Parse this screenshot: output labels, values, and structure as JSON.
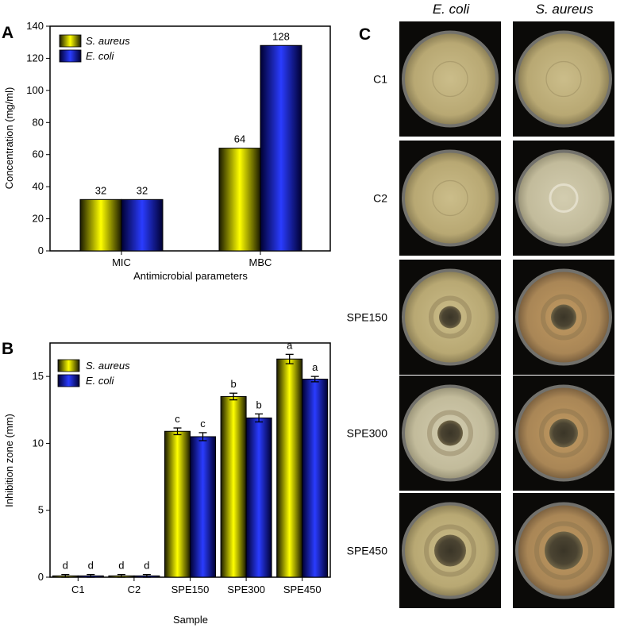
{
  "chart_data": [
    {
      "panel": "A",
      "type": "bar",
      "categories": [
        "MIC",
        "MBC"
      ],
      "series": [
        {
          "name": "S. aureus",
          "values": [
            32,
            64
          ]
        },
        {
          "name": "E. coli",
          "values": [
            32,
            128
          ]
        }
      ],
      "bar_labels": [
        [
          "32",
          "64"
        ],
        [
          "32",
          "128"
        ]
      ],
      "xlabel": "Antimicrobial parameters",
      "ylabel": "Concentration (mg/ml)",
      "ylim": [
        0,
        140
      ],
      "yticks": [
        0,
        20,
        40,
        60,
        80,
        100,
        120,
        140
      ],
      "legend_position": "top-left",
      "grid": false
    },
    {
      "panel": "B",
      "type": "bar",
      "categories": [
        "C1",
        "C2",
        "SPE150",
        "SPE300",
        "SPE450"
      ],
      "series": [
        {
          "name": "S. aureus",
          "values": [
            0.1,
            0.1,
            10.9,
            13.5,
            16.3
          ],
          "errors": [
            0.1,
            0.1,
            0.25,
            0.25,
            0.35
          ],
          "letters": [
            "d",
            "d",
            "c",
            "b",
            "a"
          ]
        },
        {
          "name": "E. coli",
          "values": [
            0.1,
            0.1,
            10.5,
            11.9,
            14.8
          ],
          "errors": [
            0.1,
            0.1,
            0.3,
            0.3,
            0.2
          ],
          "letters": [
            "d",
            "d",
            "c",
            "b",
            "a"
          ]
        }
      ],
      "xlabel": "Sample",
      "ylabel": "Inhibition zone (mm)",
      "ylim": [
        0,
        17.5
      ],
      "yticks": [
        0,
        5,
        10,
        15
      ],
      "legend_position": "top-left",
      "grid": false
    }
  ],
  "panel_letters": {
    "a": "A",
    "b": "B",
    "c": "C"
  },
  "photo_panel": {
    "columns": [
      "E. coli",
      "S. aureus"
    ],
    "rows": [
      "C1",
      "C2",
      "SPE150",
      "SPE300",
      "SPE450"
    ]
  },
  "colors": {
    "s_aureus": "#ffff00",
    "e_coli": "#1f2fff",
    "photo_bg": "#0b0a08",
    "agar": "#c9b884"
  }
}
